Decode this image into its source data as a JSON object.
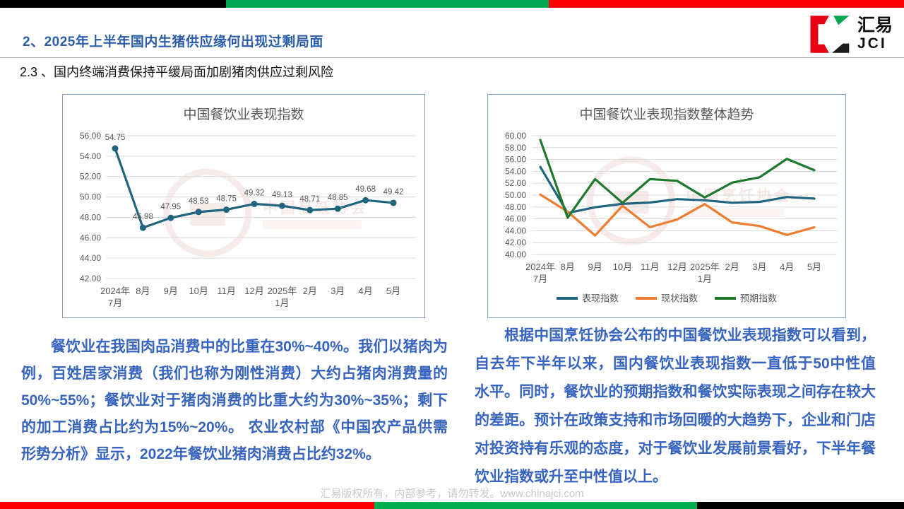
{
  "header": {
    "section_title": "2、2025年上半年国内生猪供应缘何出现过剩局面",
    "subsection_title": "2.3 、国内终端消费保持平缓局面加剧猪肉供应过剩风险",
    "logo_cn": "汇易",
    "logo_en": "JCI"
  },
  "colors": {
    "title_blue": "#2B5DA9",
    "body_text_blue": "#3764C0",
    "performance_line": "#206580",
    "current_line": "#ED7D31",
    "expectation_line": "#1E782D",
    "bar_red": "#FE0000",
    "bar_green_top": "#00A651",
    "bar_green_bottom": "#00B050",
    "bar_black": "#000000",
    "axis_gray": "#595959",
    "grid_gray": "#D9D9D9",
    "chart_border": "#7F9CC9"
  },
  "chart_data": [
    {
      "type": "line",
      "title": "中国餐饮业表现指数",
      "xlabel": "",
      "ylabel": "",
      "categories": [
        "2024年\n7月",
        "8月",
        "9月",
        "10月",
        "11月",
        "12月",
        "2025年\n1月",
        "2月",
        "3月",
        "4月",
        "5月"
      ],
      "series": [
        {
          "name": "表现指数",
          "color": "#206580",
          "markers": true,
          "data_labels": true,
          "values": [
            54.75,
            46.98,
            47.95,
            48.53,
            48.75,
            49.32,
            49.13,
            48.71,
            48.85,
            49.68,
            49.42
          ]
        }
      ],
      "ylim": [
        42,
        56
      ],
      "ytick_step": 2,
      "grid": true,
      "legend_position": "none",
      "watermark_text": "中国烹饪协会"
    },
    {
      "type": "line",
      "title": "中国餐饮业表现指数整体趋势",
      "xlabel": "",
      "ylabel": "",
      "categories": [
        "2024年\n7月",
        "8月",
        "9月",
        "10月",
        "11月",
        "12月",
        "2025年\n1月",
        "2月",
        "3月",
        "4月",
        "5月"
      ],
      "series": [
        {
          "name": "表现指数",
          "color": "#206580",
          "markers": false,
          "data_labels": false,
          "values": [
            54.75,
            46.98,
            47.95,
            48.53,
            48.75,
            49.32,
            49.13,
            48.71,
            48.85,
            49.68,
            49.42
          ]
        },
        {
          "name": "现状指数",
          "color": "#ED7D31",
          "markers": false,
          "data_labels": false,
          "values": [
            50.1,
            47.2,
            43.2,
            48.2,
            44.6,
            45.9,
            48.5,
            45.4,
            44.8,
            43.3,
            44.6
          ]
        },
        {
          "name": "预期指数",
          "color": "#1E782D",
          "markers": false,
          "data_labels": false,
          "values": [
            59.3,
            46.2,
            52.7,
            48.7,
            52.7,
            52.4,
            49.6,
            52.1,
            53.0,
            56.1,
            54.2
          ]
        }
      ],
      "ylim": [
        40,
        60
      ],
      "ytick_step": 2,
      "grid": true,
      "legend_position": "bottom",
      "watermark_text": "中国烹饪协会"
    }
  ],
  "paragraphs": {
    "left": "餐饮业在我国肉品消费中的比重在30%~40%。我们以猪肉为例，百姓居家消费（我们也称为刚性消费）大约占猪肉消费量的50%~55%；餐饮业对于猪肉消费的比重大约为30%~35%；剩下的加工消费占比约为15%~20%。 农业农村部《中国农产品供需形势分析》显示，2022年餐饮业猪肉消费占比约32%。",
    "right": "根据中国烹饪协会公布的中国餐饮业表现指数可以看到，自去年下半年以来，国内餐饮业表现指数一直低于50中性值水平。同时，餐饮业的预期指数和餐饮实际表现之间存在较大的差距。预计在政策支持和市场回暖的大趋势下，企业和门店对投资持有乐观的态度，对于餐饮业发展前景看好，下半年餐饮业指数或升至中性值以上。"
  },
  "footer": "汇易版权所有，内部参考，请勿转发。www.chinajci.com"
}
